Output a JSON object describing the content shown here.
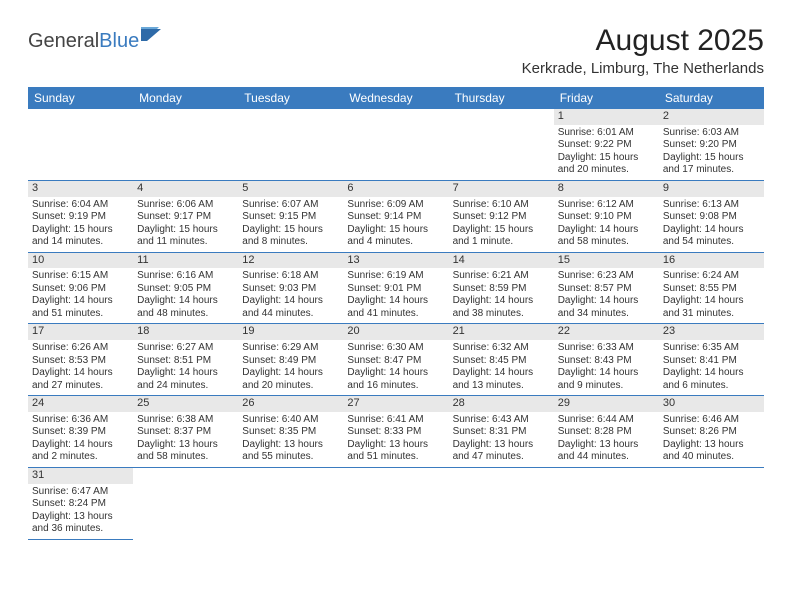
{
  "logo": {
    "text1": "General",
    "text2": "Blue"
  },
  "title": "August 2025",
  "subtitle": "Kerkrade, Limburg, The Netherlands",
  "colors": {
    "header_bg": "#3a7bbf",
    "header_fg": "#ffffff",
    "daynum_bg": "#e8e8e8",
    "row_border": "#3a7bbf",
    "page_bg": "#ffffff",
    "text": "#333333"
  },
  "fonts": {
    "title_size": 30,
    "subtitle_size": 15,
    "header_size": 12,
    "daynum_size": 11,
    "body_size": 10
  },
  "weekdays": [
    "Sunday",
    "Monday",
    "Tuesday",
    "Wednesday",
    "Thursday",
    "Friday",
    "Saturday"
  ],
  "weeks": [
    [
      {
        "day": "",
        "sunrise": "",
        "sunset": "",
        "daylight": ""
      },
      {
        "day": "",
        "sunrise": "",
        "sunset": "",
        "daylight": ""
      },
      {
        "day": "",
        "sunrise": "",
        "sunset": "",
        "daylight": ""
      },
      {
        "day": "",
        "sunrise": "",
        "sunset": "",
        "daylight": ""
      },
      {
        "day": "",
        "sunrise": "",
        "sunset": "",
        "daylight": ""
      },
      {
        "day": "1",
        "sunrise": "Sunrise: 6:01 AM",
        "sunset": "Sunset: 9:22 PM",
        "daylight": "Daylight: 15 hours and 20 minutes."
      },
      {
        "day": "2",
        "sunrise": "Sunrise: 6:03 AM",
        "sunset": "Sunset: 9:20 PM",
        "daylight": "Daylight: 15 hours and 17 minutes."
      }
    ],
    [
      {
        "day": "3",
        "sunrise": "Sunrise: 6:04 AM",
        "sunset": "Sunset: 9:19 PM",
        "daylight": "Daylight: 15 hours and 14 minutes."
      },
      {
        "day": "4",
        "sunrise": "Sunrise: 6:06 AM",
        "sunset": "Sunset: 9:17 PM",
        "daylight": "Daylight: 15 hours and 11 minutes."
      },
      {
        "day": "5",
        "sunrise": "Sunrise: 6:07 AM",
        "sunset": "Sunset: 9:15 PM",
        "daylight": "Daylight: 15 hours and 8 minutes."
      },
      {
        "day": "6",
        "sunrise": "Sunrise: 6:09 AM",
        "sunset": "Sunset: 9:14 PM",
        "daylight": "Daylight: 15 hours and 4 minutes."
      },
      {
        "day": "7",
        "sunrise": "Sunrise: 6:10 AM",
        "sunset": "Sunset: 9:12 PM",
        "daylight": "Daylight: 15 hours and 1 minute."
      },
      {
        "day": "8",
        "sunrise": "Sunrise: 6:12 AM",
        "sunset": "Sunset: 9:10 PM",
        "daylight": "Daylight: 14 hours and 58 minutes."
      },
      {
        "day": "9",
        "sunrise": "Sunrise: 6:13 AM",
        "sunset": "Sunset: 9:08 PM",
        "daylight": "Daylight: 14 hours and 54 minutes."
      }
    ],
    [
      {
        "day": "10",
        "sunrise": "Sunrise: 6:15 AM",
        "sunset": "Sunset: 9:06 PM",
        "daylight": "Daylight: 14 hours and 51 minutes."
      },
      {
        "day": "11",
        "sunrise": "Sunrise: 6:16 AM",
        "sunset": "Sunset: 9:05 PM",
        "daylight": "Daylight: 14 hours and 48 minutes."
      },
      {
        "day": "12",
        "sunrise": "Sunrise: 6:18 AM",
        "sunset": "Sunset: 9:03 PM",
        "daylight": "Daylight: 14 hours and 44 minutes."
      },
      {
        "day": "13",
        "sunrise": "Sunrise: 6:19 AM",
        "sunset": "Sunset: 9:01 PM",
        "daylight": "Daylight: 14 hours and 41 minutes."
      },
      {
        "day": "14",
        "sunrise": "Sunrise: 6:21 AM",
        "sunset": "Sunset: 8:59 PM",
        "daylight": "Daylight: 14 hours and 38 minutes."
      },
      {
        "day": "15",
        "sunrise": "Sunrise: 6:23 AM",
        "sunset": "Sunset: 8:57 PM",
        "daylight": "Daylight: 14 hours and 34 minutes."
      },
      {
        "day": "16",
        "sunrise": "Sunrise: 6:24 AM",
        "sunset": "Sunset: 8:55 PM",
        "daylight": "Daylight: 14 hours and 31 minutes."
      }
    ],
    [
      {
        "day": "17",
        "sunrise": "Sunrise: 6:26 AM",
        "sunset": "Sunset: 8:53 PM",
        "daylight": "Daylight: 14 hours and 27 minutes."
      },
      {
        "day": "18",
        "sunrise": "Sunrise: 6:27 AM",
        "sunset": "Sunset: 8:51 PM",
        "daylight": "Daylight: 14 hours and 24 minutes."
      },
      {
        "day": "19",
        "sunrise": "Sunrise: 6:29 AM",
        "sunset": "Sunset: 8:49 PM",
        "daylight": "Daylight: 14 hours and 20 minutes."
      },
      {
        "day": "20",
        "sunrise": "Sunrise: 6:30 AM",
        "sunset": "Sunset: 8:47 PM",
        "daylight": "Daylight: 14 hours and 16 minutes."
      },
      {
        "day": "21",
        "sunrise": "Sunrise: 6:32 AM",
        "sunset": "Sunset: 8:45 PM",
        "daylight": "Daylight: 14 hours and 13 minutes."
      },
      {
        "day": "22",
        "sunrise": "Sunrise: 6:33 AM",
        "sunset": "Sunset: 8:43 PM",
        "daylight": "Daylight: 14 hours and 9 minutes."
      },
      {
        "day": "23",
        "sunrise": "Sunrise: 6:35 AM",
        "sunset": "Sunset: 8:41 PM",
        "daylight": "Daylight: 14 hours and 6 minutes."
      }
    ],
    [
      {
        "day": "24",
        "sunrise": "Sunrise: 6:36 AM",
        "sunset": "Sunset: 8:39 PM",
        "daylight": "Daylight: 14 hours and 2 minutes."
      },
      {
        "day": "25",
        "sunrise": "Sunrise: 6:38 AM",
        "sunset": "Sunset: 8:37 PM",
        "daylight": "Daylight: 13 hours and 58 minutes."
      },
      {
        "day": "26",
        "sunrise": "Sunrise: 6:40 AM",
        "sunset": "Sunset: 8:35 PM",
        "daylight": "Daylight: 13 hours and 55 minutes."
      },
      {
        "day": "27",
        "sunrise": "Sunrise: 6:41 AM",
        "sunset": "Sunset: 8:33 PM",
        "daylight": "Daylight: 13 hours and 51 minutes."
      },
      {
        "day": "28",
        "sunrise": "Sunrise: 6:43 AM",
        "sunset": "Sunset: 8:31 PM",
        "daylight": "Daylight: 13 hours and 47 minutes."
      },
      {
        "day": "29",
        "sunrise": "Sunrise: 6:44 AM",
        "sunset": "Sunset: 8:28 PM",
        "daylight": "Daylight: 13 hours and 44 minutes."
      },
      {
        "day": "30",
        "sunrise": "Sunrise: 6:46 AM",
        "sunset": "Sunset: 8:26 PM",
        "daylight": "Daylight: 13 hours and 40 minutes."
      }
    ],
    [
      {
        "day": "31",
        "sunrise": "Sunrise: 6:47 AM",
        "sunset": "Sunset: 8:24 PM",
        "daylight": "Daylight: 13 hours and 36 minutes."
      },
      {
        "day": "",
        "sunrise": "",
        "sunset": "",
        "daylight": ""
      },
      {
        "day": "",
        "sunrise": "",
        "sunset": "",
        "daylight": ""
      },
      {
        "day": "",
        "sunrise": "",
        "sunset": "",
        "daylight": ""
      },
      {
        "day": "",
        "sunrise": "",
        "sunset": "",
        "daylight": ""
      },
      {
        "day": "",
        "sunrise": "",
        "sunset": "",
        "daylight": ""
      },
      {
        "day": "",
        "sunrise": "",
        "sunset": "",
        "daylight": ""
      }
    ]
  ]
}
